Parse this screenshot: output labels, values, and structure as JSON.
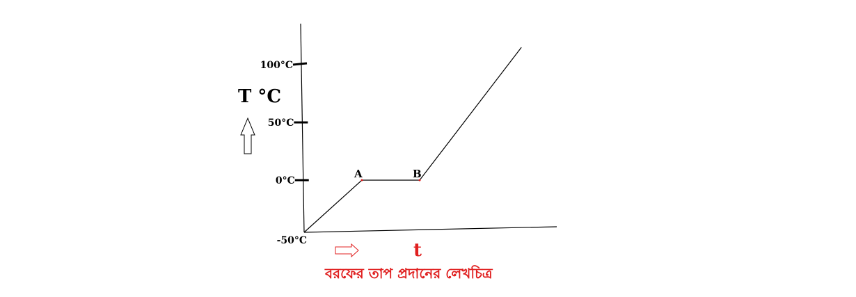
{
  "chart_data": {
    "type": "line",
    "title": "",
    "caption": "বরফের তাপ প্রদানের লেখচিত্র",
    "xlabel": "t",
    "ylabel": "T °C",
    "ylim": [
      -50,
      130
    ],
    "y_ticks": [
      {
        "value": -50,
        "label": "-50°C"
      },
      {
        "value": 0,
        "label": "0°C"
      },
      {
        "value": 50,
        "label": "50°C"
      },
      {
        "value": 100,
        "label": "100°C"
      }
    ],
    "grid": false,
    "legend": "none",
    "series": [
      {
        "x": [
          0,
          1,
          2,
          3.7
        ],
        "y": [
          -50,
          0,
          0,
          115
        ]
      }
    ],
    "annotations": [
      {
        "label": "A",
        "x": 1,
        "y": 0
      },
      {
        "label": "B",
        "x": 2,
        "y": 0
      }
    ],
    "colors": {
      "axis": "#000000",
      "line": "#000000",
      "accent": "#e02020"
    }
  }
}
